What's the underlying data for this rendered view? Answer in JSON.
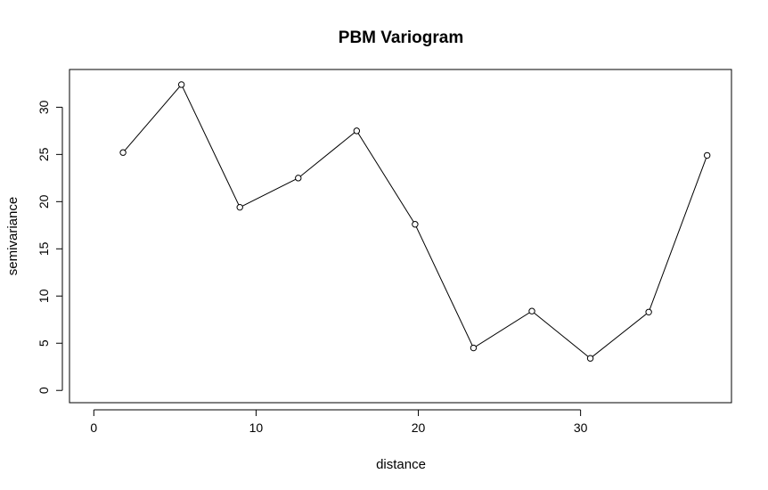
{
  "chart_data": {
    "type": "line",
    "title": "PBM Variogram",
    "xlabel": "distance",
    "ylabel": "semivariance",
    "xlim": [
      -1.5,
      39.3
    ],
    "ylim": [
      -1.3,
      34.0
    ],
    "xticks": [
      0,
      10,
      20,
      30
    ],
    "yticks": [
      0,
      5,
      10,
      15,
      20,
      25,
      30
    ],
    "grid": false,
    "legend": "none",
    "point_marker": "open-circle",
    "line_color": "#000000",
    "series": [
      {
        "x": [
          1.8,
          5.4,
          9.0,
          12.6,
          16.2,
          19.8,
          23.4,
          27.0,
          30.6,
          34.2,
          37.8
        ],
        "values": [
          25.2,
          32.4,
          19.4,
          22.5,
          27.5,
          17.6,
          4.5,
          8.4,
          3.4,
          8.3,
          24.9
        ]
      }
    ]
  }
}
